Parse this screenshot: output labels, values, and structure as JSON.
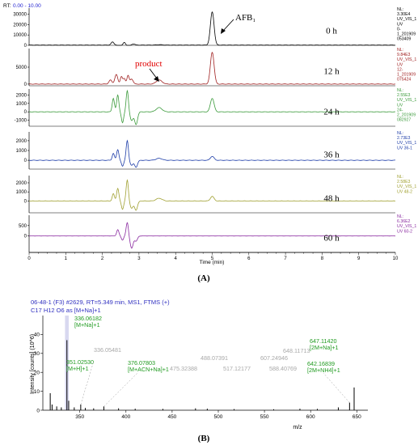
{
  "figure": {
    "panel_a_label": "(A)",
    "panel_b_label": "(B)"
  },
  "chart_data": [
    {
      "type": "line",
      "panel": "A",
      "rt_header": "RT:",
      "rt_range": "0.00 - 10.00",
      "xlabel": "Time (min)",
      "xlim": [
        0,
        10
      ],
      "x_ticks": [
        "0",
        "1",
        "2",
        "3",
        "4",
        "5",
        "6",
        "7",
        "8",
        "9",
        "10"
      ],
      "afb_label": "AFB₁",
      "product_label": "product",
      "annotation_color_product": "#e00000",
      "series": [
        {
          "name": "0 h",
          "color": "#000000",
          "ylim": [
            0,
            36000
          ],
          "y_ticks": [
            "0",
            "10000",
            "20000",
            "30000"
          ],
          "y_tick_values": [
            0,
            10000,
            20000,
            30000
          ],
          "info": [
            "NL:",
            "3.30E4",
            "UV_VIS_1",
            "UV",
            "0-",
            "1_201909",
            "053409"
          ],
          "baseline": 200,
          "peaks": [
            [
              2.28,
              0.04,
              3000
            ],
            [
              2.45,
              0.03,
              -1500
            ],
            [
              2.6,
              0.03,
              2500
            ],
            [
              2.72,
              0.03,
              -1800
            ],
            [
              2.85,
              0.04,
              1200
            ],
            [
              3.55,
              0.08,
              400
            ],
            [
              5.0,
              0.05,
              32000
            ]
          ]
        },
        {
          "name": "12 h",
          "color": "#a02020",
          "ylim": [
            -500,
            10500
          ],
          "y_ticks": [
            "0",
            "5000"
          ],
          "y_tick_values": [
            0,
            5000
          ],
          "info": [
            "NL:",
            "9.84E3",
            "UV_VIS_1",
            "UV",
            "12-",
            "1_201909",
            "075424"
          ],
          "baseline": 0,
          "peaks": [
            [
              2.22,
              0.04,
              1200
            ],
            [
              2.38,
              0.04,
              2800
            ],
            [
              2.52,
              0.03,
              2200
            ],
            [
              2.6,
              0.03,
              1600
            ],
            [
              2.7,
              0.03,
              2500
            ],
            [
              2.8,
              0.04,
              1500
            ],
            [
              3.55,
              0.08,
              1200
            ],
            [
              5.0,
              0.05,
              9400
            ]
          ]
        },
        {
          "name": "24 h",
          "color": "#3a9a3a",
          "ylim": [
            -1700,
            2700
          ],
          "y_ticks": [
            "-1000",
            "0",
            "1000",
            "2000"
          ],
          "y_tick_values": [
            -1000,
            0,
            1000,
            2000
          ],
          "info": [
            "NL:",
            "2.55E3",
            "UV_VIS_1",
            "UV",
            "24-",
            "2_201909",
            "082927"
          ],
          "baseline": 0,
          "peaks": [
            [
              2.3,
              0.03,
              1600
            ],
            [
              2.42,
              0.03,
              2000
            ],
            [
              2.55,
              0.03,
              -1300
            ],
            [
              2.68,
              0.03,
              2500
            ],
            [
              2.8,
              0.04,
              -1000
            ],
            [
              2.92,
              0.04,
              -1500
            ],
            [
              3.55,
              0.08,
              500
            ],
            [
              5.0,
              0.05,
              1600
            ]
          ]
        },
        {
          "name": "36 h",
          "color": "#1c3ca8",
          "ylim": [
            -900,
            2900
          ],
          "y_ticks": [
            "0",
            "1000",
            "2000"
          ],
          "y_tick_values": [
            0,
            1000,
            2000
          ],
          "info": [
            "NL:",
            "2.73E3",
            "UV_VIS_1",
            "UV 36-1"
          ],
          "baseline": 0,
          "peaks": [
            [
              2.3,
              0.03,
              700
            ],
            [
              2.42,
              0.03,
              1100
            ],
            [
              2.55,
              0.03,
              -600
            ],
            [
              2.68,
              0.03,
              2000
            ],
            [
              2.8,
              0.04,
              -500
            ],
            [
              2.92,
              0.04,
              -700
            ],
            [
              3.55,
              0.08,
              200
            ],
            [
              5.0,
              0.05,
              400
            ]
          ]
        },
        {
          "name": "48 h",
          "color": "#a0a030",
          "ylim": [
            -1300,
            2800
          ],
          "y_ticks": [
            "0",
            "1000",
            "2000"
          ],
          "y_tick_values": [
            0,
            1000,
            2000
          ],
          "info": [
            "NL:",
            "2.58E3",
            "UV_VIS_1",
            "UV 48-2"
          ],
          "baseline": 0,
          "peaks": [
            [
              2.3,
              0.03,
              800
            ],
            [
              2.42,
              0.03,
              1400
            ],
            [
              2.55,
              0.03,
              -900
            ],
            [
              2.68,
              0.03,
              2300
            ],
            [
              2.8,
              0.04,
              -800
            ],
            [
              2.92,
              0.04,
              -1000
            ],
            [
              3.55,
              0.08,
              300
            ],
            [
              5.0,
              0.05,
              500
            ]
          ]
        },
        {
          "name": "60 h",
          "color": "#8a2aa0",
          "ylim": [
            -800,
            1000
          ],
          "y_ticks": [
            "0",
            "500"
          ],
          "y_tick_values": [
            0,
            500
          ],
          "info": [
            "NL:",
            "6.36E2",
            "UV_VIS_1",
            "UV 60-2"
          ],
          "baseline": 0,
          "peaks": [
            [
              2.42,
              0.03,
              300
            ],
            [
              2.55,
              0.03,
              -200
            ],
            [
              2.68,
              0.03,
              650
            ],
            [
              2.8,
              0.04,
              -600
            ],
            [
              2.92,
              0.04,
              -250
            ]
          ]
        }
      ]
    },
    {
      "type": "bar",
      "panel": "B",
      "header_lines": [
        "06-48-1 (F3) #2629, RT=5.349 min, MS1, FTMS (+)",
        "C17 H12 O6 as [M+Na]+1"
      ],
      "header_color": "#3030c0",
      "xlabel": "m/z",
      "ylabel": "Intensity [counts] (10^6)",
      "xlim": [
        310,
        662
      ],
      "ylim": [
        0,
        50
      ],
      "x_ticks": [
        350,
        400,
        450,
        500,
        550,
        600,
        650
      ],
      "y_ticks": [
        0,
        10,
        20,
        30,
        40
      ],
      "highlight_color": "#d8d8f0",
      "peaks": [
        {
          "mz": 318,
          "intensity": 9
        },
        {
          "mz": 320,
          "intensity": 3
        },
        {
          "mz": 325,
          "intensity": 2
        },
        {
          "mz": 330,
          "intensity": 1.5
        },
        {
          "mz": 336.06182,
          "intensity": 37
        },
        {
          "mz": 338,
          "intensity": 5
        },
        {
          "mz": 344,
          "intensity": 1.5
        },
        {
          "mz": 351.0253,
          "intensity": 3
        },
        {
          "mz": 356,
          "intensity": 1.2
        },
        {
          "mz": 365,
          "intensity": 1
        },
        {
          "mz": 376.07803,
          "intensity": 2
        },
        {
          "mz": 392,
          "intensity": 1
        },
        {
          "mz": 410,
          "intensity": 0.8
        },
        {
          "mz": 440,
          "intensity": 0.7
        },
        {
          "mz": 475.32388,
          "intensity": 1
        },
        {
          "mz": 488.07391,
          "intensity": 0.8
        },
        {
          "mz": 517.12177,
          "intensity": 0.6
        },
        {
          "mz": 560,
          "intensity": 0.5
        },
        {
          "mz": 588.40769,
          "intensity": 0.8
        },
        {
          "mz": 607.24946,
          "intensity": 0.7
        },
        {
          "mz": 630,
          "intensity": 1.5
        },
        {
          "mz": 642.16839,
          "intensity": 4
        },
        {
          "mz": 647.1142,
          "intensity": 12
        }
      ],
      "labels": [
        {
          "lines": [
            "336.06182",
            "[M+Na]+1"
          ],
          "color": "#1e9a1e"
        },
        {
          "lines": [
            "336.05481"
          ],
          "color": "#a8a8a8"
        },
        {
          "lines": [
            "351.02530",
            "[M+H]+1"
          ],
          "color": "#1e9a1e"
        },
        {
          "lines": [
            "376.07803",
            "[M+ACN+Na]+1"
          ],
          "color": "#1e9a1e"
        },
        {
          "lines": [
            "475.32388"
          ],
          "color": "#a8a8a8"
        },
        {
          "lines": [
            "488.07391"
          ],
          "color": "#a8a8a8"
        },
        {
          "lines": [
            "517.12177"
          ],
          "color": "#a8a8a8"
        },
        {
          "lines": [
            "588.40769"
          ],
          "color": "#a8a8a8"
        },
        {
          "lines": [
            "607.24946"
          ],
          "color": "#a8a8a8"
        },
        {
          "lines": [
            "648.11713"
          ],
          "color": "#a8a8a8"
        },
        {
          "lines": [
            "647.11420",
            "[2M+Na]+1"
          ],
          "color": "#1e9a1e"
        },
        {
          "lines": [
            "642.16839",
            "[2M+NH4]+1"
          ],
          "color": "#1e9a1e"
        }
      ]
    }
  ]
}
